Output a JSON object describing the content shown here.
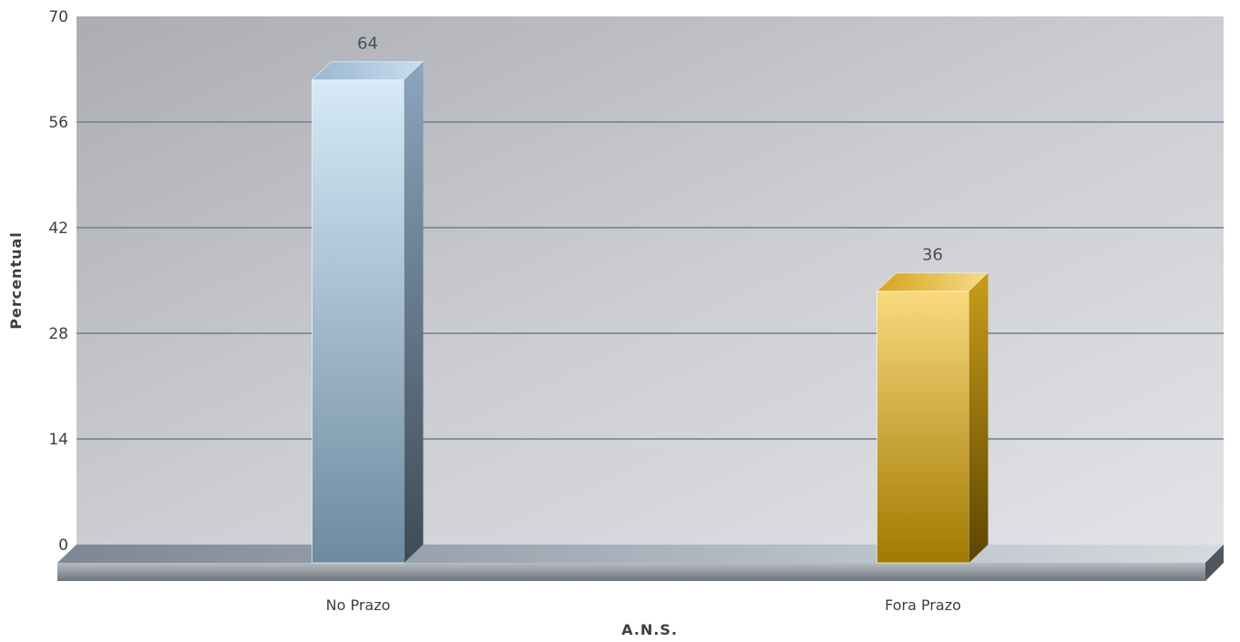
{
  "chart_data": {
    "type": "bar",
    "categories": [
      "No Prazo",
      "Fora Prazo"
    ],
    "values": [
      64,
      36
    ],
    "data_labels": [
      "64",
      "36"
    ],
    "xlabel": "A.N.S.",
    "ylabel": "Percentual",
    "ylim": [
      0,
      70
    ],
    "yticks": [
      "0",
      "14",
      "28",
      "42",
      "56",
      "70"
    ],
    "grid": true,
    "bar_colors": [
      "#a9c3d9",
      "#d4ad45"
    ],
    "legend": "none"
  }
}
